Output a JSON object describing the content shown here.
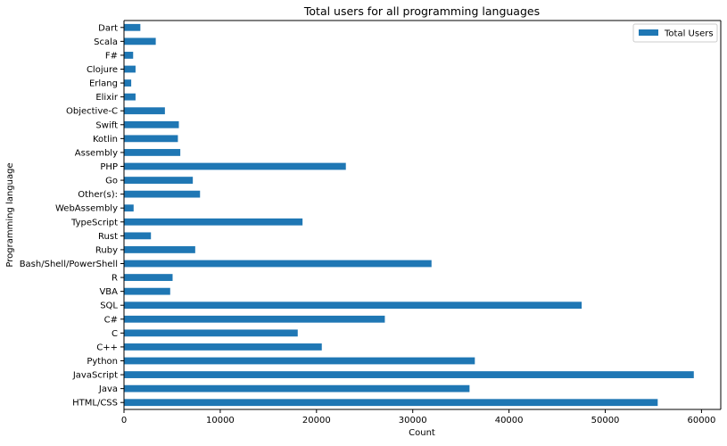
{
  "chart_data": {
    "type": "bar",
    "orientation": "horizontal",
    "title": "Total users for all programming languages",
    "xlabel": "Count",
    "ylabel": "Programming language",
    "xlim": [
      0,
      62000
    ],
    "xticks": [
      0,
      10000,
      20000,
      30000,
      40000,
      50000,
      60000
    ],
    "grid": false,
    "legend_position": "top-right",
    "bar_color": "#1f77b4",
    "categories": [
      "HTML/CSS",
      "Java",
      "JavaScript",
      "Python",
      "C++",
      "C",
      "C#",
      "SQL",
      "VBA",
      "R",
      "Bash/Shell/PowerShell",
      "Ruby",
      "Rust",
      "TypeScript",
      "WebAssembly",
      "Other(s):",
      "Go",
      "PHP",
      "Assembly",
      "Kotlin",
      "Swift",
      "Objective-C",
      "Elixir",
      "Erlang",
      "Clojure",
      "F#",
      "Scala",
      "Dart"
    ],
    "series": [
      {
        "name": "Total Users",
        "values": [
          55450,
          35900,
          59200,
          36450,
          20550,
          18050,
          27100,
          47550,
          4800,
          5050,
          31950,
          7400,
          2800,
          18550,
          1000,
          7900,
          7150,
          23050,
          5850,
          5600,
          5700,
          4250,
          1200,
          750,
          1200,
          950,
          3300,
          1700
        ]
      }
    ]
  }
}
